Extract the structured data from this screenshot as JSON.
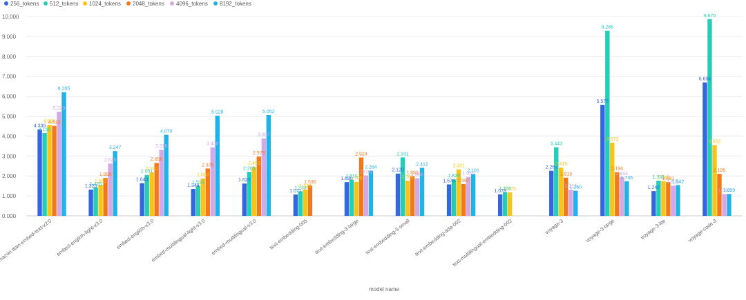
{
  "chart_data": {
    "type": "bar",
    "title": "",
    "xlabel": "model name",
    "ylabel": "",
    "ylim": [
      0,
      10
    ],
    "yticks": [
      "0.000",
      "1.000",
      "2.000",
      "3.000",
      "4.000",
      "5.000",
      "6.000",
      "7.000",
      "8.000",
      "9.000",
      "10.000"
    ],
    "legend_position": "top-left",
    "categories": [
      "amazon.titan-embed-text-v2:0",
      "embed-english-light-v3.0",
      "embed-english-v3.0",
      "embed-multilingual-light-v3.0",
      "embed-multilingual-v3.0",
      "text-embedding-005",
      "text-embedding-3-large",
      "text-embedding-3-small",
      "text-embedding-ada-002",
      "text-multilingual-embedding-002",
      "voyage-3",
      "voyage-3-large",
      "voyage-3-lite",
      "voyage-code-3"
    ],
    "series": [
      {
        "name": "256_tokens",
        "color": "#3366e0",
        "values": [
          4.339,
          1.32,
          1.643,
          1.348,
          1.623,
          1.071,
          1.69,
          2.12,
          1.578,
          1.078,
          2.262,
          5.575,
          1.242,
          6.694
        ]
      },
      {
        "name": "512_tokens",
        "color": "#24cdb8",
        "values": [
          4.155,
          1.426,
          2.051,
          1.51,
          2.205,
          1.233,
          1.81,
          2.931,
          1.826,
          1.188,
          3.443,
          9.286,
          1.765,
          9.87
        ]
      },
      {
        "name": "1024_tokens",
        "color": "#f5c518",
        "values": [
          4.565,
          1.552,
          2.18,
          1.88,
          2.453,
          1.32,
          1.705,
          1.766,
          2.331,
          1.175,
          2.419,
          3.673,
          1.745,
          3.552
        ]
      },
      {
        "name": "2048_tokens",
        "color": "#f07a1b",
        "values": [
          4.513,
          1.899,
          2.656,
          2.376,
          2.979,
          1.53,
          2.924,
          1.993,
          1.597,
          null,
          1.913,
          2.194,
          1.691,
          2.106
        ]
      },
      {
        "name": "4096_tokens",
        "color": "#d7a8e8",
        "values": [
          5.223,
          2.626,
          3.318,
          3.438,
          3.887,
          null,
          2.03,
          1.888,
          1.95,
          null,
          1.312,
          1.944,
          1.515,
          1.094
        ]
      },
      {
        "name": "8192_tokens",
        "color": "#22b3e6",
        "values": [
          6.205,
          3.247,
          4.07,
          5.028,
          5.052,
          null,
          2.264,
          2.412,
          2.101,
          null,
          1.26,
          1.736,
          1.542,
          1.099
        ]
      }
    ]
  }
}
